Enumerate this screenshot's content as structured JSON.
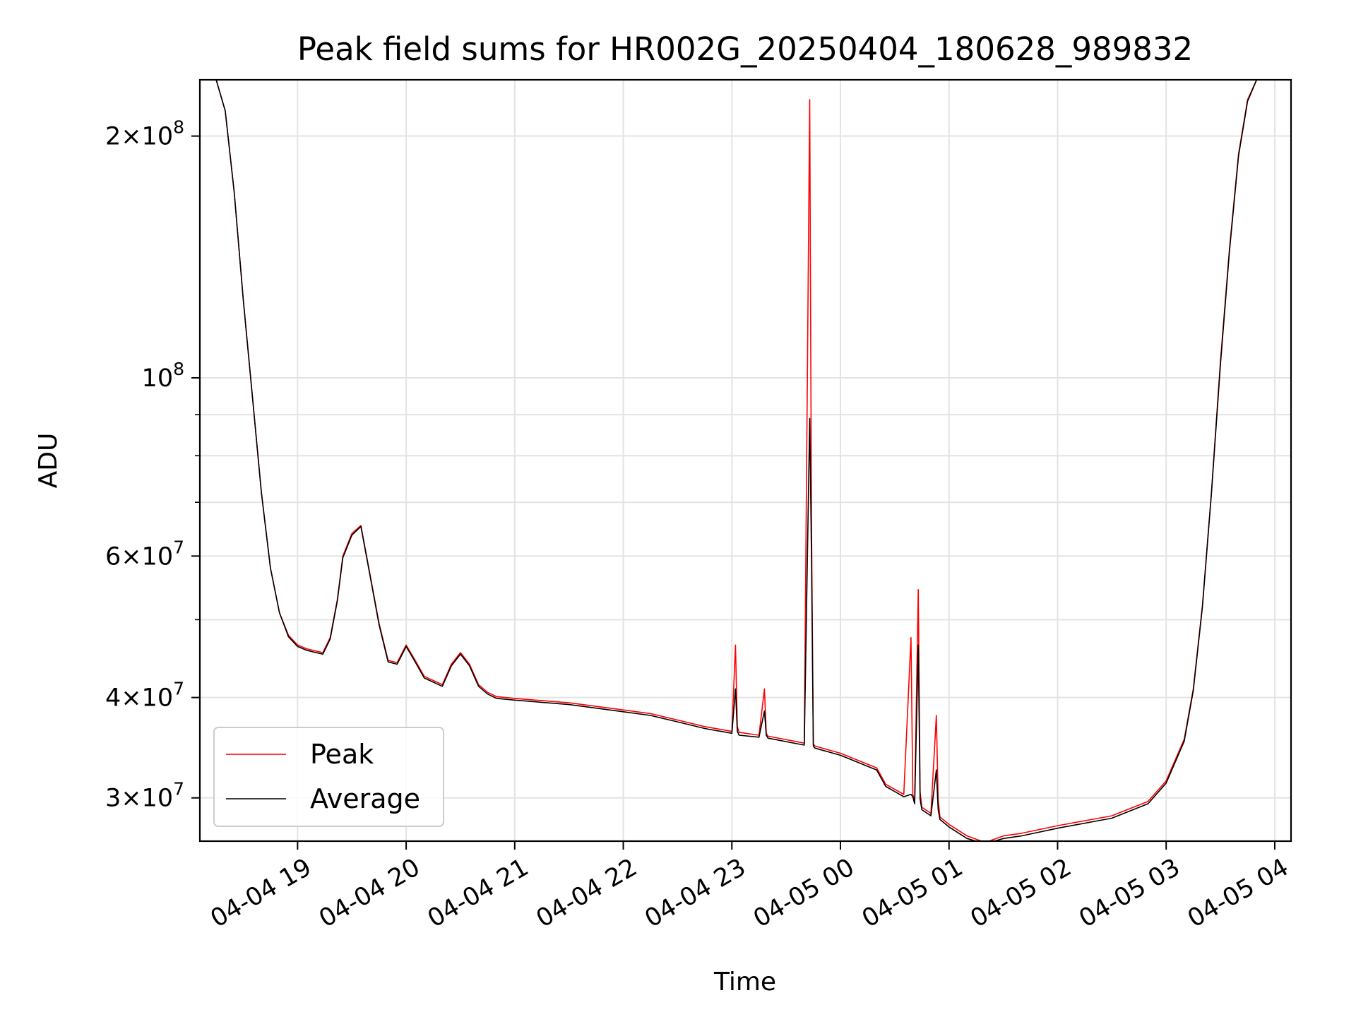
{
  "chart_data": {
    "type": "line",
    "title": "Peak field sums for HR002G_20250404_180628_989832",
    "xlabel": "Time",
    "ylabel": "ADU",
    "yscale": "log",
    "ylim": [
      26500000,
      235000000
    ],
    "xlim": [
      "04-04 18:06",
      "04-05 04:09"
    ],
    "grid": true,
    "legend_position": "lower-left",
    "x_ticks": [
      "04-04 19",
      "04-04 20",
      "04-04 21",
      "04-04 22",
      "04-04 23",
      "04-05 00",
      "04-05 01",
      "04-05 02",
      "04-05 03",
      "04-05 04"
    ],
    "y_ticks": [
      {
        "value": 200000000,
        "base": "2",
        "exp": "8"
      },
      {
        "value": 100000000,
        "base": "",
        "exp": "8"
      },
      {
        "value": 60000000,
        "base": "6",
        "exp": "7"
      },
      {
        "value": 40000000,
        "base": "4",
        "exp": "7"
      },
      {
        "value": 30000000,
        "base": "3",
        "exp": "7"
      }
    ],
    "y_minor_ticks": [
      90000000,
      80000000,
      70000000,
      50000000
    ],
    "series": [
      {
        "name": "Peak",
        "color": "#ff0000",
        "x": [
          "04-04 18:07",
          "04-04 18:15",
          "04-04 18:20",
          "04-04 18:25",
          "04-04 18:30",
          "04-04 18:35",
          "04-04 18:40",
          "04-04 18:45",
          "04-04 18:50",
          "04-04 18:55",
          "04-04 19:00",
          "04-04 19:05",
          "04-04 19:10",
          "04-04 19:14",
          "04-04 19:18",
          "04-04 19:22",
          "04-04 19:25",
          "04-04 19:30",
          "04-04 19:35",
          "04-04 19:40",
          "04-04 19:45",
          "04-04 19:50",
          "04-04 19:55",
          "04-04 20:00",
          "04-04 20:05",
          "04-04 20:10",
          "04-04 20:15",
          "04-04 20:20",
          "04-04 20:25",
          "04-04 20:30",
          "04-04 20:35",
          "04-04 20:40",
          "04-04 20:45",
          "04-04 20:50",
          "04-04 20:55",
          "04-04 21:00",
          "04-04 21:30",
          "04-04 22:00",
          "04-04 22:15",
          "04-04 22:30",
          "04-04 22:45",
          "04-04 23:00",
          "04-04 23:02",
          "04-04 23:03",
          "04-04 23:04",
          "04-04 23:15",
          "04-04 23:18",
          "04-04 23:19",
          "04-04 23:20",
          "04-04 23:40",
          "04-04 23:43",
          "04-04 23:44",
          "04-04 23:45",
          "04-04 23:46",
          "04-05 00:00",
          "04-05 00:20",
          "04-05 00:25",
          "04-05 00:35",
          "04-05 00:39",
          "04-05 00:40",
          "04-05 00:41",
          "04-05 00:43",
          "04-05 00:44",
          "04-05 00:45",
          "04-05 00:50",
          "04-05 00:53",
          "04-05 00:54",
          "04-05 00:55",
          "04-05 01:00",
          "04-05 01:10",
          "04-05 01:20",
          "04-05 01:30",
          "04-05 01:40",
          "04-05 02:00",
          "04-05 02:30",
          "04-05 02:50",
          "04-05 03:00",
          "04-05 03:10",
          "04-05 03:15",
          "04-05 03:20",
          "04-05 03:25",
          "04-05 03:30",
          "04-05 03:35",
          "04-05 03:40",
          "04-05 03:45",
          "04-05 03:50",
          "04-05 03:55",
          "04-05 04:00",
          "04-05 04:03",
          "04-05 04:08"
        ],
        "y": [
          235000000,
          235000000,
          215000000,
          170000000,
          125000000,
          95000000,
          72000000,
          58000000,
          51000000,
          47800000,
          46500000,
          46000000,
          45700000,
          45500000,
          47500000,
          53000000,
          60000000,
          64000000,
          65500000,
          57000000,
          49500000,
          44500000,
          44200000,
          46500000,
          44500000,
          42500000,
          42000000,
          41500000,
          44000000,
          45500000,
          44000000,
          41500000,
          40600000,
          40100000,
          40000000,
          39900000,
          39400000,
          38600000,
          38200000,
          37500000,
          36800000,
          36300000,
          46500000,
          36800000,
          36200000,
          35900000,
          41000000,
          36100000,
          35800000,
          35100000,
          222000000,
          66000000,
          35000000,
          34800000,
          34100000,
          32700000,
          31200000,
          30300000,
          47500000,
          30300000,
          29700000,
          54500000,
          30500000,
          29200000,
          28700000,
          38000000,
          29800000,
          28400000,
          27800000,
          26900000,
          26400000,
          26900000,
          27100000,
          27700000,
          28500000,
          29700000,
          31500000,
          35500000,
          41000000,
          52000000,
          72000000,
          105000000,
          145000000,
          190000000,
          222000000,
          235000000,
          235000000,
          235000000,
          235000000,
          235000000
        ]
      },
      {
        "name": "Average",
        "color": "#000000",
        "x": [
          "04-04 18:07",
          "04-04 18:15",
          "04-04 18:20",
          "04-04 18:25",
          "04-04 18:30",
          "04-04 18:35",
          "04-04 18:40",
          "04-04 18:45",
          "04-04 18:50",
          "04-04 18:55",
          "04-04 19:00",
          "04-04 19:05",
          "04-04 19:10",
          "04-04 19:14",
          "04-04 19:18",
          "04-04 19:22",
          "04-04 19:25",
          "04-04 19:30",
          "04-04 19:35",
          "04-04 19:40",
          "04-04 19:45",
          "04-04 19:50",
          "04-04 19:55",
          "04-04 20:00",
          "04-04 20:05",
          "04-04 20:10",
          "04-04 20:15",
          "04-04 20:20",
          "04-04 20:25",
          "04-04 20:30",
          "04-04 20:35",
          "04-04 20:40",
          "04-04 20:45",
          "04-04 20:50",
          "04-04 20:55",
          "04-04 21:00",
          "04-04 21:30",
          "04-04 22:00",
          "04-04 22:15",
          "04-04 22:30",
          "04-04 22:45",
          "04-04 23:00",
          "04-04 23:02",
          "04-04 23:03",
          "04-04 23:04",
          "04-04 23:15",
          "04-04 23:18",
          "04-04 23:19",
          "04-04 23:20",
          "04-04 23:40",
          "04-04 23:43",
          "04-04 23:44",
          "04-04 23:45",
          "04-04 23:46",
          "04-05 00:00",
          "04-05 00:20",
          "04-05 00:25",
          "04-05 00:35",
          "04-05 00:39",
          "04-05 00:40",
          "04-05 00:41",
          "04-05 00:43",
          "04-05 00:44",
          "04-05 00:45",
          "04-05 00:50",
          "04-05 00:53",
          "04-05 00:54",
          "04-05 00:55",
          "04-05 01:00",
          "04-05 01:10",
          "04-05 01:20",
          "04-05 01:30",
          "04-05 01:40",
          "04-05 02:00",
          "04-05 02:30",
          "04-05 02:50",
          "04-05 03:00",
          "04-05 03:10",
          "04-05 03:15",
          "04-05 03:20",
          "04-05 03:25",
          "04-05 03:30",
          "04-05 03:35",
          "04-05 03:40",
          "04-05 03:45",
          "04-05 03:50",
          "04-05 03:55",
          "04-05 04:00",
          "04-05 04:03",
          "04-05 04:08"
        ],
        "y": [
          235000000,
          235000000,
          215000000,
          170000000,
          125000000,
          95000000,
          72000000,
          58000000,
          51000000,
          47600000,
          46300000,
          45800000,
          45500000,
          45300000,
          47300000,
          52800000,
          59700000,
          63700000,
          65300000,
          56800000,
          49300000,
          44300000,
          44000000,
          46300000,
          44300000,
          42300000,
          41800000,
          41300000,
          43800000,
          45300000,
          43800000,
          41300000,
          40400000,
          39900000,
          39800000,
          39700000,
          39200000,
          38400000,
          38000000,
          37300000,
          36600000,
          36100000,
          41000000,
          36300000,
          35900000,
          35700000,
          38500000,
          35900000,
          35600000,
          34900000,
          89000000,
          60000000,
          34800000,
          34600000,
          33900000,
          32500000,
          31000000,
          30100000,
          30300000,
          30100000,
          29500000,
          46500000,
          29900000,
          29000000,
          28500000,
          32500000,
          29000000,
          28200000,
          27600000,
          26700000,
          26300000,
          26700000,
          26900000,
          27500000,
          28300000,
          29500000,
          31300000,
          35300000,
          40800000,
          51800000,
          71800000,
          104000000,
          144000000,
          189000000,
          221000000,
          235000000,
          235000000,
          235000000,
          235000000,
          235000000
        ]
      }
    ]
  }
}
